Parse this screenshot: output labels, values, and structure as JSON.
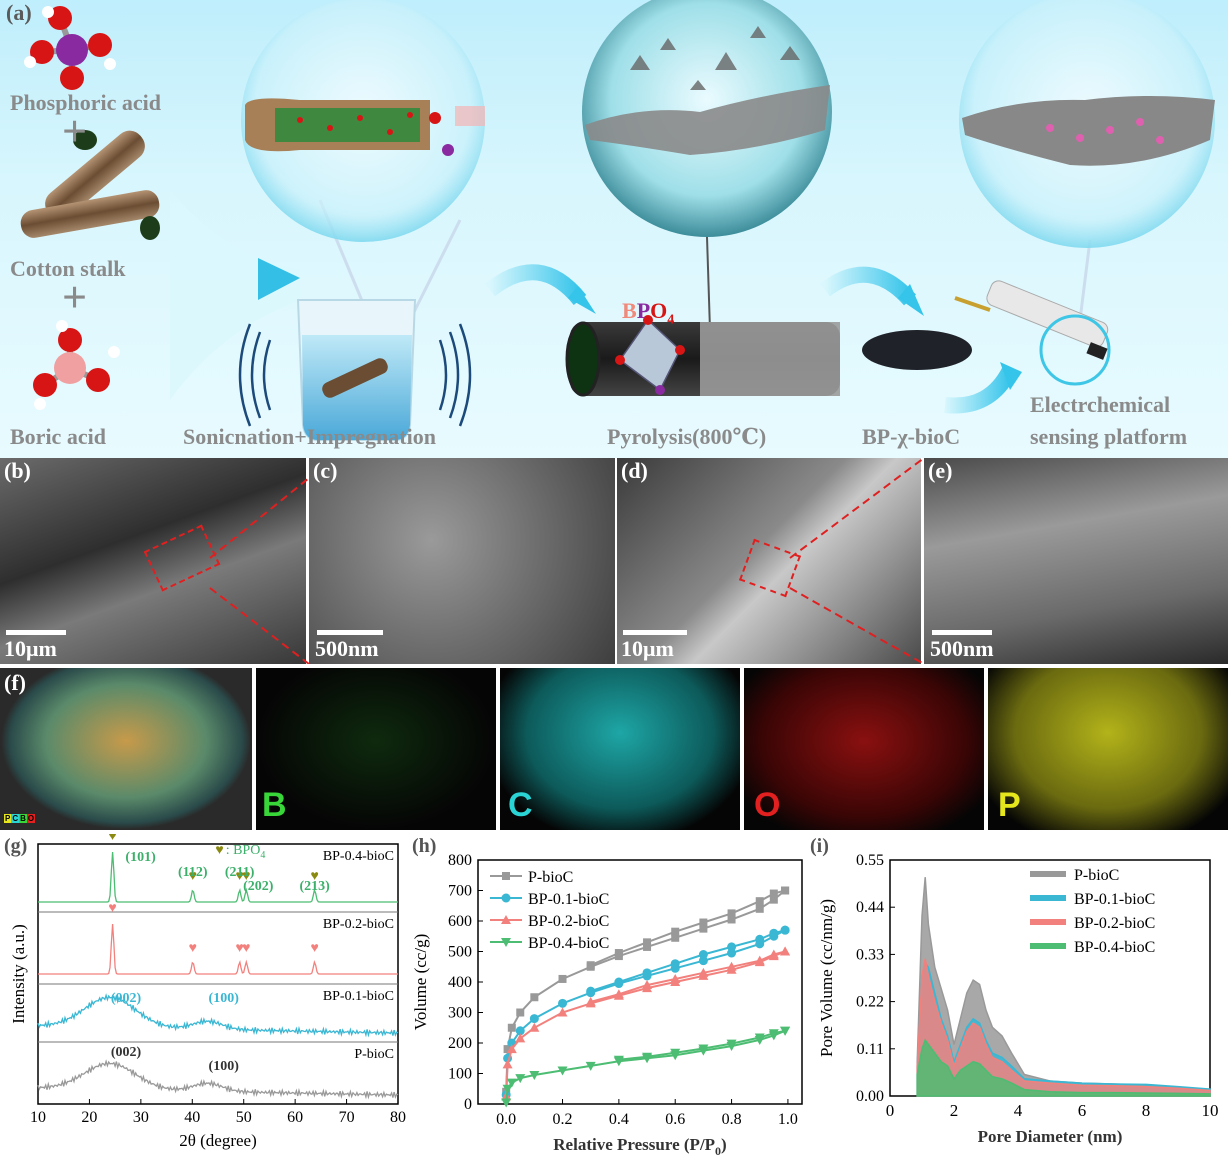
{
  "panel_a": {
    "label": "(a)",
    "reagents": [
      "Phosphoric acid",
      "Cotton stalk",
      "Boric acid"
    ],
    "plus": "+",
    "steps": [
      "Sonicnation+Impregnation",
      "Pyrolysis(800℃)",
      "BP-χ-bioC"
    ],
    "platform_line1": "Electrchemical",
    "platform_line2": "sensing platform",
    "bpo4_b": "B",
    "bpo4_p": "P",
    "bpo4_o": "O",
    "bpo4_sub": "4"
  },
  "sem": {
    "b": {
      "label": "(b)",
      "scale": "10μm"
    },
    "c": {
      "label": "(c)",
      "scale": "500nm"
    },
    "d": {
      "label": "(d)",
      "scale": "10μm"
    },
    "e": {
      "label": "(e)",
      "scale": "500nm"
    }
  },
  "mapping": {
    "label": "(f)",
    "legend": [
      "P",
      "C",
      "B",
      "O"
    ],
    "elements": [
      {
        "symbol": "B",
        "color": "#39d639"
      },
      {
        "symbol": "C",
        "color": "#2ad4d4"
      },
      {
        "symbol": "O",
        "color": "#e32020"
      },
      {
        "symbol": "P",
        "color": "#e6e61c"
      }
    ]
  },
  "colors": {
    "pbioc": "#999999",
    "bp01": "#3ab7d3",
    "bp02": "#f2817d",
    "bp04": "#4cbd72",
    "marker": "#8a8a10"
  },
  "chart_data": [
    {
      "type": "line",
      "panel": "(g)",
      "xlabel": "2θ (degree)",
      "ylabel": "Intensity (a.u.)",
      "xlim": [
        10,
        80
      ],
      "xticks": [
        10,
        20,
        30,
        40,
        50,
        60,
        70,
        80
      ],
      "legend_text": ": BPO",
      "legend_sub": "4",
      "series": [
        {
          "name": "BP-0.4-bioC",
          "peaks": [
            24.5,
            40.1,
            49.2,
            50.5,
            63.8
          ],
          "peak_labels": [
            {
              "text": "(101)",
              "x": 24.5
            },
            {
              "text": "(112)",
              "x": 40.1
            },
            {
              "text": "(211)",
              "x": 49.2
            },
            {
              "text": "(202)",
              "x": 50.5
            },
            {
              "text": "(213)",
              "x": 63.8
            }
          ]
        },
        {
          "name": "BP-0.2-bioC",
          "peaks": [
            24.5,
            40.1,
            49.2,
            50.5,
            63.8
          ]
        },
        {
          "name": "BP-0.1-bioC",
          "broad_peaks": [
            {
              "text": "(002)",
              "x": 24
            },
            {
              "text": "(100)",
              "x": 43
            }
          ]
        },
        {
          "name": "P-bioC",
          "broad_peaks": [
            {
              "text": "(002)",
              "x": 24
            },
            {
              "text": "(100)",
              "x": 43
            }
          ]
        }
      ]
    },
    {
      "type": "line",
      "panel": "(h)",
      "xlabel": "Relative Pressure (P/P",
      "xlabel_sub": "0",
      "xlabel_end": ")",
      "ylabel": "Volume (cc/g)",
      "xlim": [
        -0.1,
        1.05
      ],
      "ylim": [
        0,
        800
      ],
      "xticks": [
        0.0,
        0.2,
        0.4,
        0.6,
        0.8,
        1.0
      ],
      "yticks": [
        0,
        100,
        200,
        300,
        400,
        500,
        600,
        700,
        800
      ],
      "series": [
        {
          "name": "P-bioC",
          "marker": "square",
          "adsorption": [
            [
              0.0,
              40
            ],
            [
              0.005,
              180
            ],
            [
              0.02,
              250
            ],
            [
              0.05,
              300
            ],
            [
              0.1,
              350
            ],
            [
              0.2,
              410
            ],
            [
              0.3,
              450
            ],
            [
              0.4,
              485
            ],
            [
              0.5,
              515
            ],
            [
              0.6,
              545
            ],
            [
              0.7,
              575
            ],
            [
              0.8,
              605
            ],
            [
              0.9,
              640
            ],
            [
              0.95,
              670
            ],
            [
              0.99,
              700
            ]
          ],
          "desorption": [
            [
              0.99,
              700
            ],
            [
              0.95,
              690
            ],
            [
              0.9,
              665
            ],
            [
              0.8,
              625
            ],
            [
              0.7,
              595
            ],
            [
              0.6,
              565
            ],
            [
              0.5,
              530
            ],
            [
              0.4,
              495
            ],
            [
              0.3,
              455
            ]
          ]
        },
        {
          "name": "BP-0.1-bioC",
          "marker": "circle",
          "adsorption": [
            [
              0.0,
              30
            ],
            [
              0.005,
              150
            ],
            [
              0.02,
              200
            ],
            [
              0.05,
              240
            ],
            [
              0.1,
              280
            ],
            [
              0.2,
              330
            ],
            [
              0.3,
              365
            ],
            [
              0.4,
              395
            ],
            [
              0.5,
              420
            ],
            [
              0.6,
              445
            ],
            [
              0.7,
              470
            ],
            [
              0.8,
              495
            ],
            [
              0.9,
              525
            ],
            [
              0.95,
              550
            ],
            [
              0.99,
              570
            ]
          ],
          "desorption": [
            [
              0.99,
              570
            ],
            [
              0.95,
              560
            ],
            [
              0.9,
              540
            ],
            [
              0.8,
              515
            ],
            [
              0.7,
              490
            ],
            [
              0.6,
              460
            ],
            [
              0.5,
              430
            ],
            [
              0.4,
              400
            ],
            [
              0.3,
              370
            ]
          ]
        },
        {
          "name": "BP-0.2-bioC",
          "marker": "triangle",
          "adsorption": [
            [
              0.0,
              25
            ],
            [
              0.005,
              130
            ],
            [
              0.02,
              180
            ],
            [
              0.05,
              215
            ],
            [
              0.1,
              250
            ],
            [
              0.2,
              300
            ],
            [
              0.3,
              330
            ],
            [
              0.4,
              355
            ],
            [
              0.5,
              380
            ],
            [
              0.6,
              400
            ],
            [
              0.7,
              420
            ],
            [
              0.8,
              440
            ],
            [
              0.9,
              465
            ],
            [
              0.95,
              485
            ],
            [
              0.99,
              500
            ]
          ],
          "desorption": [
            [
              0.99,
              500
            ],
            [
              0.95,
              490
            ],
            [
              0.9,
              470
            ],
            [
              0.8,
              450
            ],
            [
              0.7,
              430
            ],
            [
              0.6,
              410
            ],
            [
              0.5,
              390
            ],
            [
              0.4,
              360
            ],
            [
              0.3,
              335
            ]
          ]
        },
        {
          "name": "BP-0.4-bioC",
          "marker": "triangle-down",
          "adsorption": [
            [
              0.0,
              5
            ],
            [
              0.005,
              50
            ],
            [
              0.02,
              70
            ],
            [
              0.05,
              85
            ],
            [
              0.1,
              95
            ],
            [
              0.2,
              110
            ],
            [
              0.3,
              125
            ],
            [
              0.4,
              140
            ],
            [
              0.5,
              150
            ],
            [
              0.6,
              160
            ],
            [
              0.7,
              175
            ],
            [
              0.8,
              190
            ],
            [
              0.9,
              210
            ],
            [
              0.95,
              225
            ],
            [
              0.99,
              240
            ]
          ],
          "desorption": [
            [
              0.99,
              240
            ],
            [
              0.95,
              232
            ],
            [
              0.9,
              218
            ],
            [
              0.8,
              198
            ],
            [
              0.7,
              182
            ],
            [
              0.6,
              168
            ],
            [
              0.5,
              155
            ],
            [
              0.4,
              145
            ]
          ]
        }
      ]
    },
    {
      "type": "area",
      "panel": "(i)",
      "xlabel": "Pore Diameter (nm)",
      "ylabel": "Pore Volume (cc/nm/g)",
      "xlim": [
        0,
        10
      ],
      "ylim": [
        0,
        0.55
      ],
      "xticks": [
        0,
        2,
        4,
        6,
        8,
        10
      ],
      "yticks": [
        0.0,
        0.11,
        0.22,
        0.33,
        0.44,
        0.55
      ],
      "series": [
        {
          "name": "P-bioC",
          "x": [
            0.85,
            1.0,
            1.1,
            1.2,
            1.4,
            1.6,
            1.8,
            2.0,
            2.2,
            2.4,
            2.6,
            2.8,
            3.0,
            3.2,
            3.5,
            3.8,
            4.2,
            5,
            6,
            7,
            8,
            9,
            10
          ],
          "y": [
            0.08,
            0.42,
            0.51,
            0.4,
            0.3,
            0.25,
            0.2,
            0.12,
            0.18,
            0.24,
            0.27,
            0.26,
            0.2,
            0.16,
            0.14,
            0.1,
            0.05,
            0.035,
            0.03,
            0.028,
            0.025,
            0.02,
            0.015
          ]
        },
        {
          "name": "BP-0.1-bioC",
          "x": [
            0.85,
            1.0,
            1.1,
            1.2,
            1.4,
            1.6,
            1.8,
            2.0,
            2.2,
            2.4,
            2.6,
            2.8,
            3.0,
            3.2,
            3.5,
            3.8,
            4.2,
            5,
            6,
            7,
            8,
            9,
            10
          ],
          "y": [
            0.07,
            0.28,
            0.31,
            0.3,
            0.24,
            0.18,
            0.14,
            0.08,
            0.12,
            0.16,
            0.18,
            0.17,
            0.13,
            0.1,
            0.09,
            0.07,
            0.04,
            0.035,
            0.03,
            0.028,
            0.027,
            0.022,
            0.016
          ]
        },
        {
          "name": "BP-0.2-bioC",
          "x": [
            0.85,
            1.0,
            1.1,
            1.2,
            1.4,
            1.6,
            1.8,
            2.0,
            2.2,
            2.4,
            2.6,
            2.8,
            3.0,
            3.2,
            3.5,
            3.8,
            4.2,
            5,
            6,
            7,
            8,
            9,
            10
          ],
          "y": [
            0.07,
            0.28,
            0.32,
            0.28,
            0.22,
            0.17,
            0.13,
            0.07,
            0.11,
            0.15,
            0.17,
            0.16,
            0.12,
            0.09,
            0.08,
            0.06,
            0.035,
            0.03,
            0.025,
            0.024,
            0.022,
            0.018,
            0.013
          ]
        },
        {
          "name": "BP-0.4-bioC",
          "x": [
            0.85,
            1.0,
            1.1,
            1.2,
            1.4,
            1.6,
            1.8,
            2.0,
            2.2,
            2.4,
            2.6,
            2.8,
            3.0,
            3.2,
            3.5,
            3.8,
            4.2,
            5,
            6,
            7,
            8,
            9,
            10
          ],
          "y": [
            0.05,
            0.11,
            0.13,
            0.12,
            0.1,
            0.08,
            0.07,
            0.04,
            0.06,
            0.07,
            0.08,
            0.075,
            0.06,
            0.045,
            0.04,
            0.03,
            0.015,
            0.01,
            0.008,
            0.008,
            0.007,
            0.006,
            0.005
          ]
        }
      ]
    }
  ]
}
